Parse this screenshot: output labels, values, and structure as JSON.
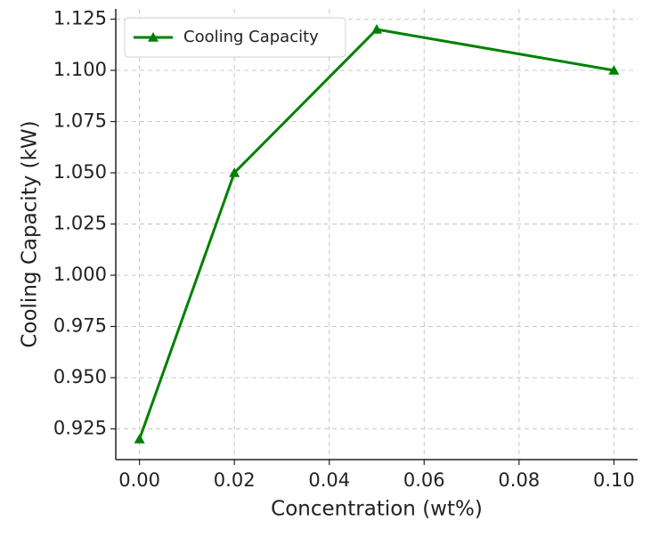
{
  "chart_data": {
    "type": "line",
    "xlabel": "Concentration (wt%)",
    "ylabel": "Cooling Capacity (kW)",
    "x": [
      0,
      0.02,
      0.05,
      0.1
    ],
    "series": [
      {
        "name": "Cooling Capacity",
        "color": "#008000",
        "marker": "triangle",
        "values": [
          0.92,
          1.05,
          1.12,
          1.1
        ]
      }
    ],
    "xlim": [
      -0.005,
      0.105
    ],
    "ylim": [
      0.91,
      1.13
    ],
    "xticks": [
      {
        "value": 0,
        "label": "0.00"
      },
      0.02,
      0.04,
      0.06,
      0.08,
      {
        "value": 0.1,
        "label": "0.10"
      }
    ],
    "yticks": [
      0.925,
      {
        "value": 0.95,
        "label": "0.950"
      },
      0.975,
      {
        "value": 1,
        "label": "1.000"
      },
      1.025,
      {
        "value": 1.05,
        "label": "1.050"
      },
      1.075,
      {
        "value": 1.1,
        "label": "1.100"
      },
      1.125
    ],
    "grid": true,
    "legend": "upper left"
  }
}
